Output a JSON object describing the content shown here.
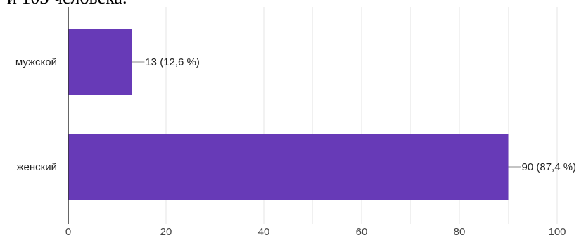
{
  "document": {
    "cropped_line": "и 103 человека."
  },
  "chart_data": {
    "type": "bar",
    "orientation": "horizontal",
    "categories": [
      "мужской",
      "женский"
    ],
    "values": [
      13,
      90
    ],
    "data_labels": [
      "13 (12,6 %)",
      "90 (87,4 %)"
    ],
    "xlim": [
      0,
      100
    ],
    "xticks": [
      0,
      20,
      40,
      60,
      80,
      100
    ],
    "grid": true,
    "colors": {
      "bar": "#673ab7",
      "grid": "#e6e6e6",
      "axis": "#333333",
      "leader": "#888888"
    },
    "title": "",
    "xlabel": "",
    "ylabel": ""
  }
}
